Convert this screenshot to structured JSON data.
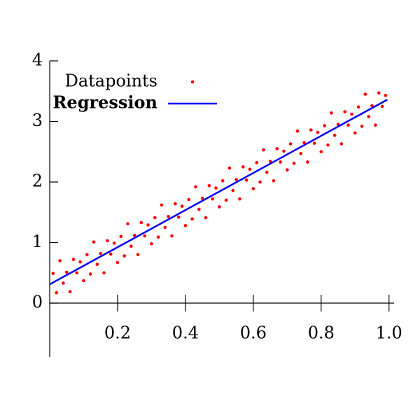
{
  "chart_data": {
    "type": "scatter",
    "xlim": [
      0,
      1.015
    ],
    "ylim": [
      -0.89,
      4
    ],
    "xticks": [
      0.2,
      0.4,
      0.6,
      0.8,
      {
        "value": 1,
        "label": "1.0"
      }
    ],
    "yticks": [
      0,
      1,
      2,
      3,
      4
    ],
    "legend": "upper left",
    "series": [
      {
        "name": "Datapoints",
        "type": "scatter",
        "color": "#ff0000",
        "x": [
          0.01,
          0.02,
          0.03,
          0.04,
          0.05,
          0.06,
          0.07,
          0.08,
          0.09,
          0.1,
          0.11,
          0.12,
          0.13,
          0.14,
          0.15,
          0.16,
          0.17,
          0.18,
          0.19,
          0.2,
          0.21,
          0.22,
          0.23,
          0.24,
          0.25,
          0.26,
          0.27,
          0.28,
          0.29,
          0.3,
          0.31,
          0.32,
          0.33,
          0.34,
          0.35,
          0.36,
          0.37,
          0.38,
          0.39,
          0.4,
          0.41,
          0.42,
          0.43,
          0.44,
          0.45,
          0.46,
          0.47,
          0.48,
          0.49,
          0.5,
          0.51,
          0.52,
          0.53,
          0.54,
          0.55,
          0.56,
          0.57,
          0.58,
          0.59,
          0.6,
          0.61,
          0.62,
          0.63,
          0.64,
          0.65,
          0.66,
          0.67,
          0.68,
          0.69,
          0.7,
          0.71,
          0.72,
          0.73,
          0.74,
          0.75,
          0.76,
          0.77,
          0.78,
          0.79,
          0.8,
          0.81,
          0.82,
          0.83,
          0.84,
          0.85,
          0.86,
          0.87,
          0.88,
          0.89,
          0.9,
          0.91,
          0.92,
          0.93,
          0.94,
          0.95,
          0.96,
          0.97,
          0.98,
          0.99
        ],
        "values": [
          0.49,
          0.17,
          0.7,
          0.33,
          0.51,
          0.19,
          0.72,
          0.5,
          0.68,
          0.37,
          0.8,
          0.48,
          1.01,
          0.64,
          0.82,
          0.5,
          1.03,
          0.81,
          0.99,
          0.67,
          1.1,
          0.78,
          1.31,
          0.94,
          1.12,
          0.8,
          1.33,
          1.11,
          1.29,
          0.98,
          1.41,
          1.09,
          1.62,
          1.25,
          1.43,
          1.11,
          1.64,
          1.42,
          1.6,
          1.28,
          1.71,
          1.39,
          1.92,
          1.55,
          1.73,
          1.41,
          1.94,
          1.72,
          1.9,
          1.59,
          2.02,
          1.7,
          2.23,
          1.86,
          2.04,
          1.72,
          2.25,
          2.03,
          2.21,
          1.89,
          2.32,
          2.0,
          2.53,
          2.16,
          2.34,
          2.02,
          2.55,
          2.33,
          2.51,
          2.2,
          2.63,
          2.31,
          2.84,
          2.47,
          2.65,
          2.33,
          2.86,
          2.64,
          2.82,
          2.5,
          2.93,
          2.61,
          3.14,
          2.77,
          2.95,
          2.63,
          3.16,
          2.94,
          3.12,
          2.81,
          3.24,
          2.92,
          3.45,
          3.08,
          3.26,
          2.94,
          3.47,
          3.25,
          3.43
        ]
      },
      {
        "name": "Regression",
        "type": "line",
        "color": "#0000ff",
        "x": [
          0,
          0.995
        ],
        "values": [
          0.31,
          3.36
        ]
      }
    ]
  }
}
